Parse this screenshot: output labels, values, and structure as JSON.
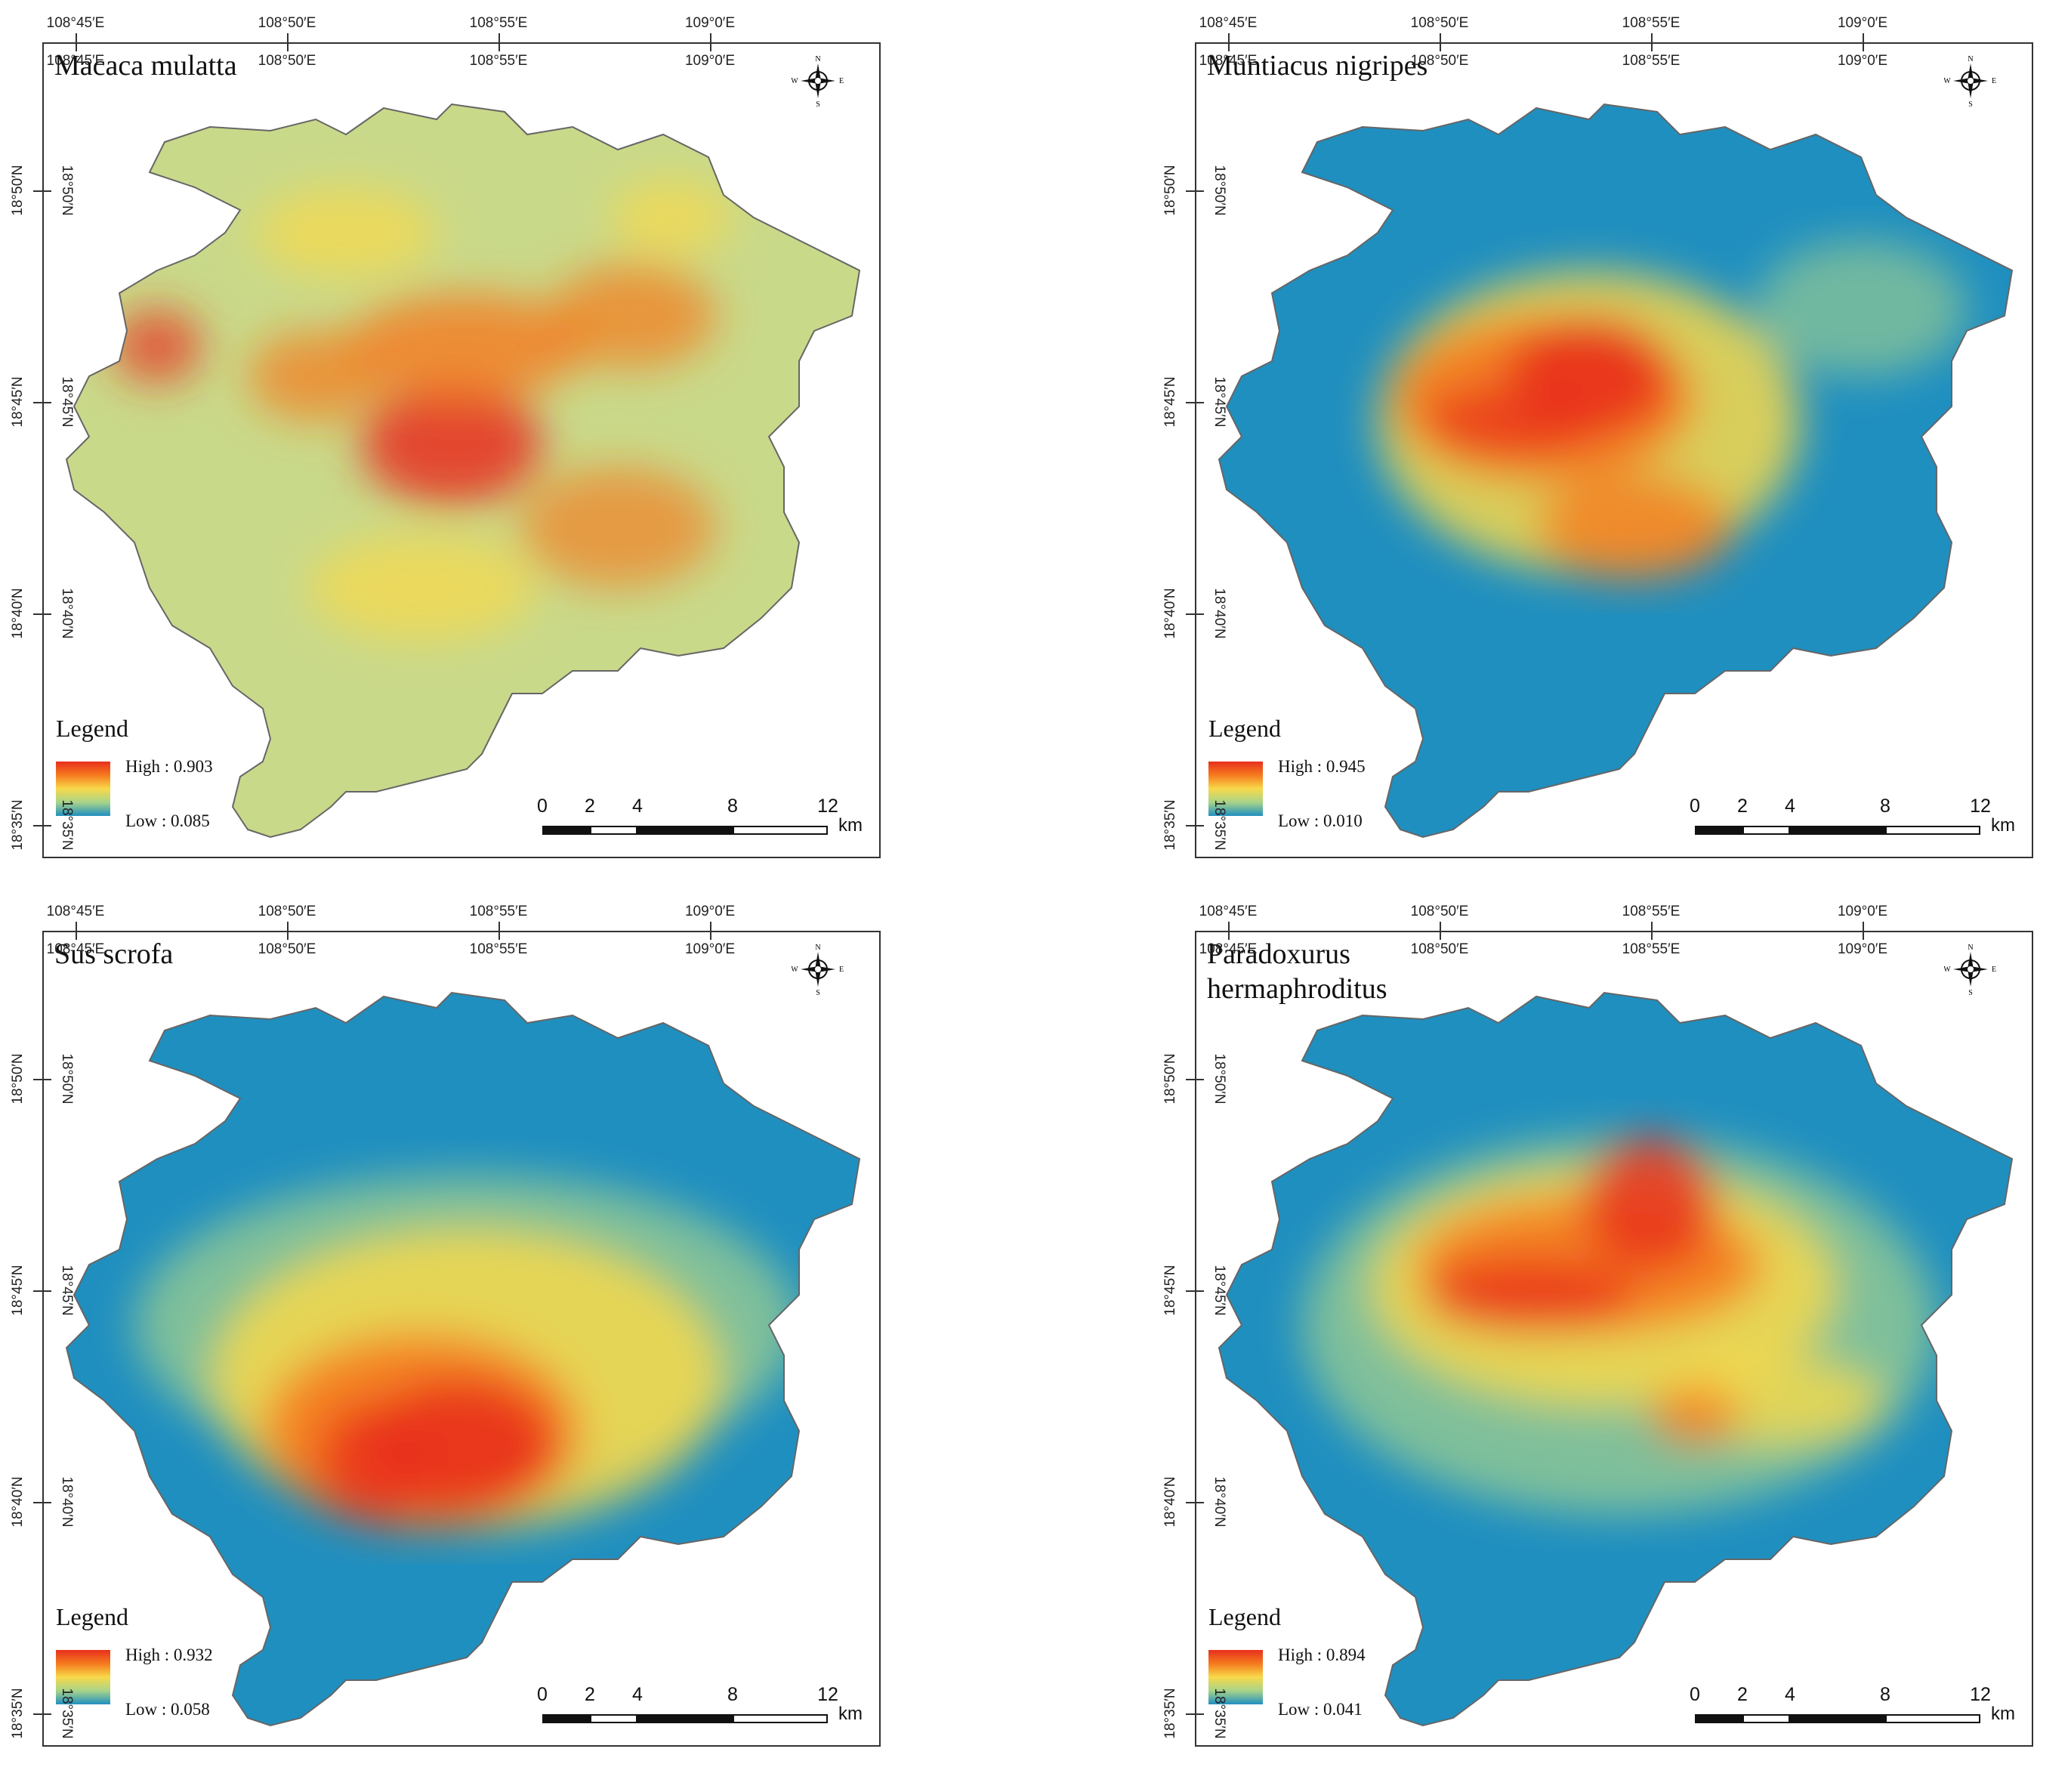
{
  "figure": {
    "panels": [
      {
        "species": "Macaca mulatta",
        "legend_title": "Legend",
        "high_label": "High : 0.903",
        "low_label": "Low : 0.085",
        "high_value": 0.903,
        "low_value": 0.085,
        "hotspot_pattern": "scattered"
      },
      {
        "species": "Muntiacus nigripes",
        "legend_title": "Legend",
        "high_label": "High : 0.945",
        "low_label": "Low : 0.010",
        "high_value": 0.945,
        "low_value": 0.01,
        "hotspot_pattern": "center-west"
      },
      {
        "species": "Sus scrofa",
        "legend_title": "Legend",
        "high_label": "High : 0.932",
        "low_label": "Low : 0.058",
        "high_value": 0.932,
        "low_value": 0.058,
        "hotspot_pattern": "south-center"
      },
      {
        "species": "Paradoxurus hermaphroditus",
        "legend_title": "Legend",
        "high_label": "High : 0.894",
        "low_label": "Low : 0.041",
        "high_value": 0.894,
        "low_value": 0.041,
        "hotspot_pattern": "center"
      }
    ],
    "longitude_labels": [
      "108°45′E",
      "108°50′E",
      "108°55′E",
      "109°0′E"
    ],
    "latitude_labels": [
      "18°50′N",
      "18°45′N",
      "18°40′N",
      "18°35′N"
    ],
    "compass": {
      "n": "N",
      "s": "S",
      "e": "E",
      "w": "W"
    },
    "scale_bar": {
      "ticks": [
        "0",
        "2",
        "4",
        "8",
        "12"
      ],
      "unit": "km"
    },
    "colors": {
      "high": "#e8301e",
      "mid_high": "#f57a1e",
      "mid": "#f8d94a",
      "mid_low": "#a8d48a",
      "low": "#1f8fc0",
      "frame": "#333333"
    }
  }
}
